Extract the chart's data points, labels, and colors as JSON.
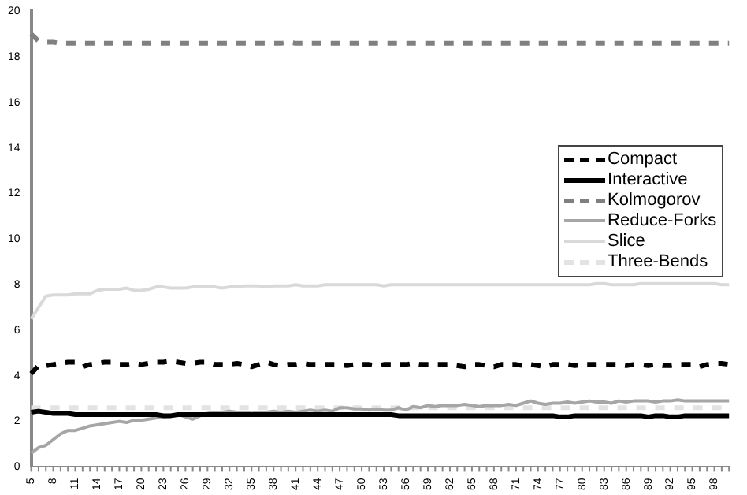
{
  "chart_data": {
    "type": "line",
    "categories": [
      "5",
      null,
      null,
      "8",
      null,
      null,
      "11",
      null,
      null,
      "14",
      null,
      null,
      "17",
      null,
      null,
      "20",
      null,
      null,
      "23",
      null,
      null,
      "26",
      null,
      null,
      "29",
      null,
      null,
      "32",
      null,
      null,
      "35",
      null,
      null,
      "38",
      null,
      null,
      "41",
      null,
      null,
      "44",
      null,
      null,
      "47",
      null,
      null,
      "50",
      null,
      null,
      "53",
      null,
      null,
      "56",
      null,
      null,
      "59",
      null,
      null,
      "62",
      null,
      null,
      "65",
      null,
      null,
      "68",
      null,
      null,
      "71",
      null,
      null,
      "74",
      null,
      null,
      "77",
      null,
      null,
      "80",
      null,
      null,
      "83",
      null,
      null,
      "86",
      null,
      null,
      "89",
      null,
      null,
      "92",
      null,
      null,
      "95",
      null,
      null,
      "98",
      null,
      null
    ],
    "series": [
      {
        "name": "Compact",
        "color": "#000000",
        "line_style": "dashed",
        "values": [
          4.1,
          4.45,
          4.45,
          4.5,
          4.55,
          4.6,
          4.6,
          4.4,
          4.5,
          4.55,
          4.6,
          4.6,
          4.5,
          4.5,
          4.55,
          4.5,
          4.55,
          4.6,
          4.6,
          4.65,
          4.6,
          4.55,
          4.55,
          4.6,
          4.6,
          4.5,
          4.5,
          4.5,
          4.55,
          4.5,
          4.4,
          4.5,
          4.6,
          4.5,
          4.45,
          4.5,
          4.5,
          4.55,
          4.5,
          4.5,
          4.5,
          4.5,
          4.5,
          4.45,
          4.5,
          4.5,
          4.5,
          4.45,
          4.5,
          4.5,
          4.5,
          4.5,
          4.55,
          4.5,
          4.5,
          4.5,
          4.5,
          4.5,
          4.45,
          4.4,
          4.5,
          4.5,
          4.45,
          4.4,
          4.5,
          4.5,
          4.5,
          4.45,
          4.5,
          4.45,
          4.4,
          4.5,
          4.5,
          4.5,
          4.45,
          4.5,
          4.5,
          4.5,
          4.5,
          4.5,
          4.5,
          4.45,
          4.5,
          4.5,
          4.45,
          4.5,
          4.45,
          4.45,
          4.5,
          4.5,
          4.5,
          4.4,
          4.5,
          4.55,
          4.55,
          4.5
        ]
      },
      {
        "name": "Interactive",
        "color": "#000000",
        "line_style": "solid",
        "values": [
          2.4,
          2.45,
          2.4,
          2.35,
          2.35,
          2.35,
          2.3,
          2.3,
          2.3,
          2.3,
          2.3,
          2.3,
          2.3,
          2.3,
          2.3,
          2.3,
          2.3,
          2.3,
          2.25,
          2.25,
          2.3,
          2.3,
          2.3,
          2.3,
          2.3,
          2.3,
          2.3,
          2.3,
          2.3,
          2.3,
          2.3,
          2.3,
          2.3,
          2.3,
          2.3,
          2.3,
          2.3,
          2.3,
          2.3,
          2.3,
          2.3,
          2.3,
          2.3,
          2.3,
          2.3,
          2.3,
          2.3,
          2.3,
          2.3,
          2.3,
          2.25,
          2.25,
          2.25,
          2.25,
          2.25,
          2.25,
          2.25,
          2.25,
          2.25,
          2.25,
          2.25,
          2.25,
          2.25,
          2.25,
          2.25,
          2.25,
          2.25,
          2.25,
          2.25,
          2.25,
          2.25,
          2.25,
          2.2,
          2.2,
          2.25,
          2.25,
          2.25,
          2.25,
          2.25,
          2.25,
          2.25,
          2.25,
          2.25,
          2.25,
          2.2,
          2.25,
          2.25,
          2.2,
          2.2,
          2.25,
          2.25,
          2.25,
          2.25,
          2.25,
          2.25,
          2.25
        ]
      },
      {
        "name": "Kolmogorov",
        "color": "#808080",
        "line_style": "dashed",
        "values": [
          19,
          18.7,
          18.65,
          18.65,
          18.6,
          18.6,
          18.6,
          18.6,
          18.6,
          18.6,
          18.6,
          18.6,
          18.6,
          18.6,
          18.6,
          18.6,
          18.6,
          18.6,
          18.6,
          18.6,
          18.6,
          18.6,
          18.6,
          18.6,
          18.6,
          18.6,
          18.6,
          18.6,
          18.6,
          18.6,
          18.6,
          18.6,
          18.6,
          18.6,
          18.6,
          18.65,
          18.6,
          18.6,
          18.6,
          18.6,
          18.6,
          18.6,
          18.6,
          18.6,
          18.6,
          18.6,
          18.6,
          18.6,
          18.6,
          18.6,
          18.6,
          18.6,
          18.6,
          18.6,
          18.6,
          18.6,
          18.6,
          18.6,
          18.6,
          18.6,
          18.6,
          18.6,
          18.6,
          18.6,
          18.6,
          18.6,
          18.6,
          18.6,
          18.6,
          18.6,
          18.6,
          18.6,
          18.6,
          18.6,
          18.6,
          18.6,
          18.6,
          18.6,
          18.6,
          18.6,
          18.6,
          18.6,
          18.6,
          18.6,
          18.6,
          18.6,
          18.6,
          18.6,
          18.6,
          18.6,
          18.6,
          18.6,
          18.6,
          18.6,
          18.6,
          18.6
        ]
      },
      {
        "name": "Reduce-Forks",
        "color": "#a6a6a6",
        "line_style": "solid",
        "values": [
          0.6,
          0.85,
          0.95,
          1.2,
          1.45,
          1.6,
          1.6,
          1.7,
          1.8,
          1.85,
          1.9,
          1.95,
          2.0,
          1.95,
          2.05,
          2.05,
          2.1,
          2.15,
          2.2,
          2.25,
          2.3,
          2.2,
          2.1,
          2.25,
          2.35,
          2.4,
          2.4,
          2.45,
          2.4,
          2.4,
          2.35,
          2.4,
          2.4,
          2.45,
          2.4,
          2.45,
          2.4,
          2.45,
          2.5,
          2.45,
          2.5,
          2.45,
          2.6,
          2.6,
          2.55,
          2.55,
          2.5,
          2.55,
          2.5,
          2.5,
          2.6,
          2.5,
          2.65,
          2.6,
          2.7,
          2.65,
          2.7,
          2.7,
          2.7,
          2.75,
          2.7,
          2.65,
          2.7,
          2.7,
          2.7,
          2.75,
          2.7,
          2.8,
          2.9,
          2.8,
          2.75,
          2.8,
          2.8,
          2.85,
          2.8,
          2.85,
          2.9,
          2.85,
          2.85,
          2.8,
          2.9,
          2.85,
          2.9,
          2.9,
          2.9,
          2.85,
          2.9,
          2.9,
          2.95,
          2.9,
          2.9,
          2.9,
          2.9,
          2.9,
          2.9,
          2.9
        ]
      },
      {
        "name": "Slice",
        "color": "#d9d9d9",
        "line_style": "solid",
        "values": [
          6.5,
          7.0,
          7.5,
          7.55,
          7.55,
          7.55,
          7.6,
          7.6,
          7.6,
          7.75,
          7.8,
          7.8,
          7.8,
          7.85,
          7.75,
          7.75,
          7.8,
          7.9,
          7.9,
          7.85,
          7.85,
          7.85,
          7.9,
          7.9,
          7.9,
          7.9,
          7.85,
          7.9,
          7.9,
          7.95,
          7.95,
          7.95,
          7.9,
          7.95,
          7.95,
          7.95,
          8.0,
          7.95,
          7.95,
          7.95,
          8.0,
          8.0,
          8.0,
          8.0,
          8.0,
          8.0,
          8.0,
          8.0,
          7.95,
          8.0,
          8.0,
          8.0,
          8.0,
          8.0,
          8.0,
          8.0,
          8.0,
          8.0,
          8.0,
          8.0,
          8.0,
          8.0,
          8.0,
          8.0,
          8.0,
          8.0,
          8.0,
          8.0,
          8.0,
          8.0,
          8.0,
          8.0,
          8.0,
          8.0,
          8.0,
          8.0,
          8.0,
          8.05,
          8.05,
          8.0,
          8.0,
          8.0,
          8.0,
          8.05,
          8.05,
          8.05,
          8.05,
          8.05,
          8.05,
          8.05,
          8.05,
          8.05,
          8.05,
          8.05,
          8.0,
          8.0
        ]
      },
      {
        "name": "Three-Bends",
        "color": "#e3e3e3",
        "line_style": "dashed",
        "values": [
          2.6,
          2.6,
          2.6,
          2.6,
          2.6,
          2.6,
          2.6,
          2.6,
          2.6,
          2.6,
          2.6,
          2.6,
          2.6,
          2.6,
          2.6,
          2.6,
          2.6,
          2.6,
          2.6,
          2.6,
          2.6,
          2.6,
          2.6,
          2.6,
          2.6,
          2.6,
          2.6,
          2.6,
          2.6,
          2.6,
          2.6,
          2.6,
          2.6,
          2.6,
          2.6,
          2.6,
          2.6,
          2.6,
          2.6,
          2.6,
          2.6,
          2.6,
          2.6,
          2.6,
          2.6,
          2.6,
          2.6,
          2.6,
          2.6,
          2.6,
          2.6,
          2.6,
          2.6,
          2.6,
          2.6,
          2.6,
          2.6,
          2.6,
          2.6,
          2.6,
          2.6,
          2.6,
          2.6,
          2.6,
          2.6,
          2.6,
          2.6,
          2.6,
          2.6,
          2.6,
          2.6,
          2.6,
          2.6,
          2.6,
          2.6,
          2.6,
          2.6,
          2.6,
          2.6,
          2.6,
          2.6,
          2.6,
          2.6,
          2.6,
          2.6,
          2.6,
          2.6,
          2.6,
          2.6,
          2.6,
          2.6,
          2.6,
          2.6,
          2.6,
          2.6,
          2.6
        ]
      }
    ],
    "ylim": [
      0,
      20
    ],
    "yticks": [
      0,
      2,
      4,
      6,
      8,
      10,
      12,
      14,
      16,
      18,
      20
    ],
    "grid": false,
    "legend": "right",
    "marker": "none"
  }
}
